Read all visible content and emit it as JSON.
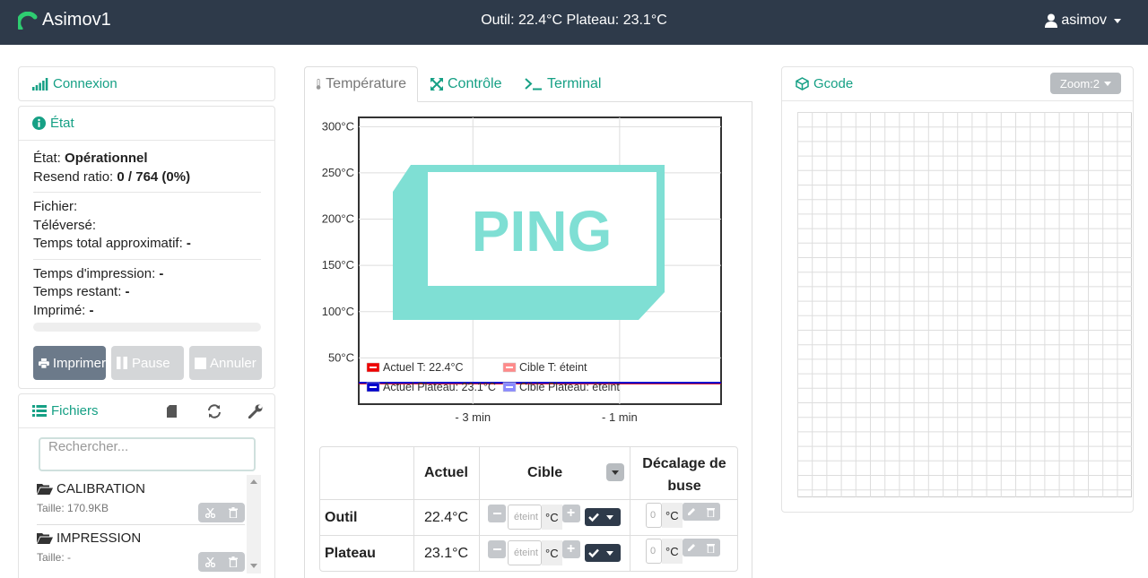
{
  "navbar": {
    "brand": "Asimov1",
    "status": "Outil: 22.4°C Plateau: 23.1°C",
    "user": "asimov"
  },
  "connexion": {
    "title": "Connexion"
  },
  "etat": {
    "title": "État",
    "state_label": "État:",
    "state_value": "Opérationnel",
    "resend_label": "Resend ratio:",
    "resend_value": "0 / 764 (0%)",
    "fichier_label": "Fichier:",
    "televerse_label": "Téléversé:",
    "temps_total_label": "Temps total approximatif:",
    "temps_total_value": "-",
    "temps_impression_label": "Temps d'impression:",
    "temps_impression_value": "-",
    "temps_restant_label": "Temps restant:",
    "temps_restant_value": "-",
    "imprime_label": "Imprimé:",
    "imprime_value": "-",
    "progress": 0,
    "buttons": {
      "print": "Imprimer",
      "pause": "Pause",
      "cancel": "Annuler"
    }
  },
  "fichiers": {
    "title": "Fichiers",
    "search_placeholder": "Rechercher...",
    "items": [
      {
        "name": "CALIBRATION",
        "size": "Taille: 170.9KB"
      },
      {
        "name": "IMPRESSION",
        "size": "Taille: -"
      }
    ]
  },
  "tabs": [
    {
      "label": "Température"
    },
    {
      "label": "Contrôle"
    },
    {
      "label": "Terminal"
    }
  ],
  "chart_data": {
    "type": "line",
    "title": "",
    "xlabel": "",
    "ylabel": "",
    "y_ticks": [
      "300°C",
      "250°C",
      "200°C",
      "150°C",
      "100°C",
      "50°C"
    ],
    "x_ticks": [
      "- 3 min",
      "- 1 min"
    ],
    "ylim": [
      0,
      310
    ],
    "grid": true,
    "legend_position": "bottom-left",
    "series": [
      {
        "name": "Actuel T: 22.4°C",
        "color": "#ee0000",
        "values": [
          22.4,
          22.4
        ]
      },
      {
        "name": "Cible T: éteint",
        "color": "#ff8a8a",
        "values": []
      },
      {
        "name": "Actuel Plateau: 23.1°C",
        "color": "#0000cc",
        "values": [
          23.1,
          23.1
        ]
      },
      {
        "name": "Cible Plateau: éteint",
        "color": "#8a8aff",
        "values": []
      }
    ],
    "watermark": "PING"
  },
  "temp_table": {
    "headers": {
      "actuel": "Actuel",
      "cible": "Cible",
      "decalage_line1": "Décalage de",
      "decalage_line2": "buse"
    },
    "rows": [
      {
        "name": "Outil",
        "actual": "22.4°C",
        "target_placeholder": "éteint",
        "offset": "0"
      },
      {
        "name": "Plateau",
        "actual": "23.1°C",
        "target_placeholder": "éteint",
        "offset": "0"
      }
    ],
    "unit": "°C"
  },
  "gcode": {
    "title": "Gcode",
    "zoom_label": "Zoom:2"
  },
  "colors": {
    "navbar": "#2e3a4a",
    "accent": "#16a085",
    "print_button": "#6c7a8a",
    "disabled_button": "#d4d6d8"
  }
}
